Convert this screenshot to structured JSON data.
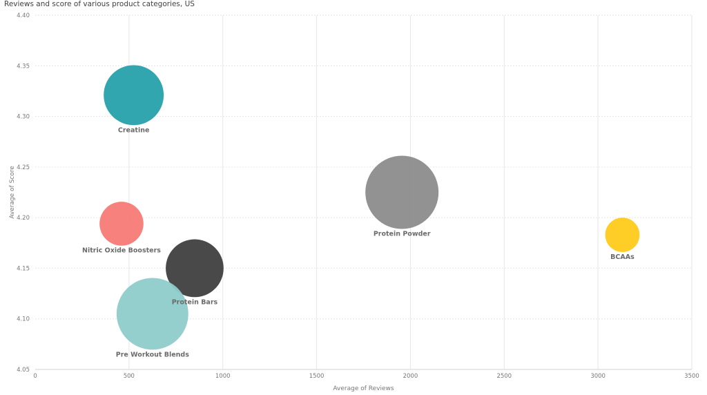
{
  "chart_data": {
    "type": "scatter",
    "title": "Reviews and score of various product categories, US",
    "xlabel": "Average of Reviews",
    "ylabel": "Average of Score",
    "xlim": [
      0,
      3500
    ],
    "ylim": [
      4.05,
      4.4
    ],
    "x_ticks": [
      "0",
      "500",
      "1000",
      "1500",
      "2000",
      "2500",
      "3000",
      "3500"
    ],
    "y_ticks": [
      "4.05",
      "4.10",
      "4.15",
      "4.20",
      "4.25",
      "4.30",
      "4.35",
      "4.40"
    ],
    "grid": true,
    "points": [
      {
        "label": "Creatine",
        "x": 525,
        "y": 4.321,
        "size": 0.82,
        "color": "#27A1AB"
      },
      {
        "label": "Nitric Oxide Boosters",
        "x": 460,
        "y": 4.194,
        "size": 0.6,
        "color": "#F67A76"
      },
      {
        "label": "Protein Bars",
        "x": 850,
        "y": 4.15,
        "size": 0.79,
        "color": "#3F3F3F"
      },
      {
        "label": "Pre Workout Blends",
        "x": 625,
        "y": 4.105,
        "size": 0.98,
        "color": "#8FCCCA"
      },
      {
        "label": "Protein Powder",
        "x": 1955,
        "y": 4.225,
        "size": 1.0,
        "color": "#8C8C8C"
      },
      {
        "label": "BCAAs",
        "x": 3130,
        "y": 4.183,
        "size": 0.47,
        "color": "#FECB1B"
      }
    ]
  }
}
